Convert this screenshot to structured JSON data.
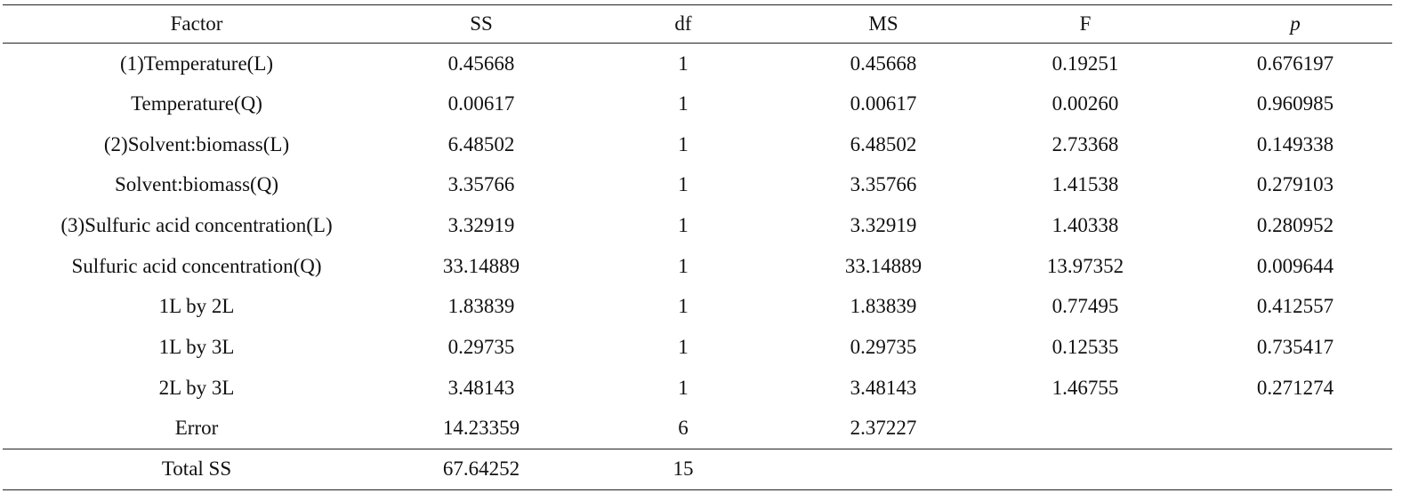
{
  "table": {
    "header": [
      "Factor",
      "SS",
      "df",
      "MS",
      "F",
      "p"
    ],
    "rows": [
      [
        "(1)Temperature(L)",
        "0.45668",
        "1",
        "0.45668",
        "0.19251",
        "0.676197"
      ],
      [
        "Temperature(Q)",
        "0.00617",
        "1",
        "0.00617",
        "0.00260",
        "0.960985"
      ],
      [
        "(2)Solvent:biomass(L)",
        "6.48502",
        "1",
        "6.48502",
        "2.73368",
        "0.149338"
      ],
      [
        "Solvent:biomass(Q)",
        "3.35766",
        "1",
        "3.35766",
        "1.41538",
        "0.279103"
      ],
      [
        "(3)Sulfuric acid concentration(L)",
        "3.32919",
        "1",
        "3.32919",
        "1.40338",
        "0.280952"
      ],
      [
        "Sulfuric acid concentration(Q)",
        "33.14889",
        "1",
        "33.14889",
        "13.97352",
        "0.009644"
      ],
      [
        "1L by 2L",
        "1.83839",
        "1",
        "1.83839",
        "0.77495",
        "0.412557"
      ],
      [
        "1L by 3L",
        "0.29735",
        "1",
        "0.29735",
        "0.12535",
        "0.735417"
      ],
      [
        "2L by 3L",
        "3.48143",
        "1",
        "3.48143",
        "1.46755",
        "0.271274"
      ],
      [
        "Error",
        "14.23359",
        "6",
        "2.37227"
      ]
    ],
    "footer": [
      "Total SS",
      "67.64252",
      "15"
    ]
  }
}
